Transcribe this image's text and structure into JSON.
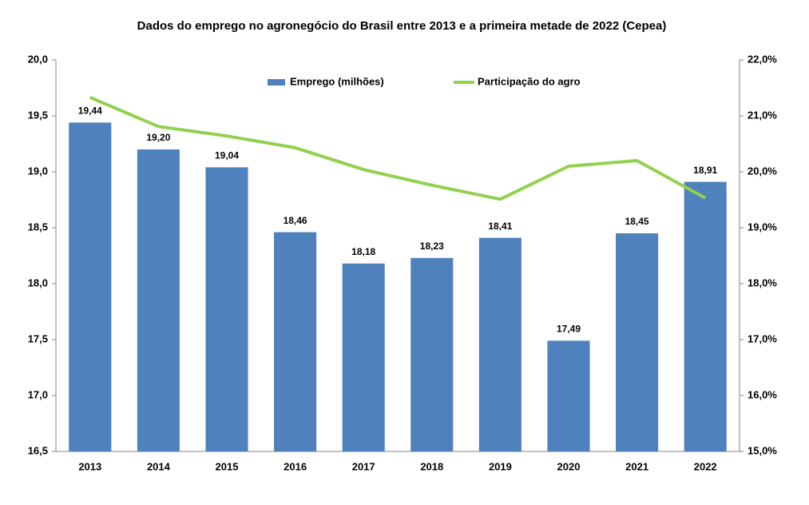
{
  "chart_data": {
    "type": "bar-line",
    "title": "Dados do emprego no agronegócio do Brasil entre 2013 e a primeira metade de 2022 (Cepea)",
    "categories": [
      "2013",
      "2014",
      "2015",
      "2016",
      "2017",
      "2018",
      "2019",
      "2020",
      "2021",
      "2022"
    ],
    "series": [
      {
        "name": "Emprego (milhões)",
        "type": "bar",
        "color": "#4f81bd",
        "values": [
          19.44,
          19.2,
          19.04,
          18.46,
          18.18,
          18.23,
          18.41,
          17.49,
          18.45,
          18.91
        ],
        "value_labels": [
          "19,44",
          "19,20",
          "19,04",
          "18,46",
          "18,18",
          "18,23",
          "18,41",
          "17,49",
          "18,45",
          "18,91"
        ]
      },
      {
        "name": "Participação do agro",
        "type": "line",
        "color": "#92d050",
        "axis": "y2",
        "values": [
          21.33,
          20.81,
          20.64,
          20.43,
          20.04,
          19.76,
          19.51,
          20.1,
          20.2,
          19.53
        ]
      }
    ],
    "ylim": [
      16.5,
      20.0
    ],
    "yticks": [
      {
        "value": 16.5,
        "label": "16,5"
      },
      {
        "value": 17.0,
        "label": "17,0"
      },
      {
        "value": 17.5,
        "label": "17,5"
      },
      {
        "value": 18.0,
        "label": "18,0"
      },
      {
        "value": 18.5,
        "label": "18,5"
      },
      {
        "value": 19.0,
        "label": "19,0"
      },
      {
        "value": 19.5,
        "label": "19,5"
      },
      {
        "value": 20.0,
        "label": "20,0"
      }
    ],
    "y2lim": [
      15.0,
      22.0
    ],
    "y2ticks": [
      {
        "value": 15,
        "label": "15,0%"
      },
      {
        "value": 16,
        "label": "16,0%"
      },
      {
        "value": 17,
        "label": "17,0%"
      },
      {
        "value": 18,
        "label": "18,0%"
      },
      {
        "value": 19,
        "label": "19,0%"
      },
      {
        "value": 20,
        "label": "20,0%"
      },
      {
        "value": 21,
        "label": "21,0%"
      },
      {
        "value": 22,
        "label": "22,0%"
      }
    ],
    "grid": false,
    "legend": "top"
  }
}
